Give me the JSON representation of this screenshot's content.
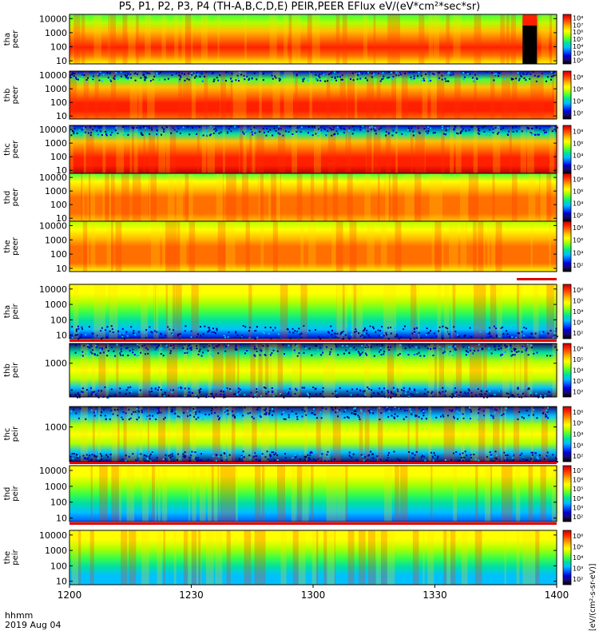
{
  "title": "P5, P1, P2, P3, P4 (TH-A,B,C,D,E) PEIR,PEER EFlux eV/(eV*cm²*sec*sr)",
  "x_axis": {
    "corner_label_1": "hhmm",
    "corner_label_2": "2019 Aug 04",
    "tick_labels": [
      "1200",
      "1230",
      "1300",
      "1330",
      "1400"
    ]
  },
  "colorbar_unit_label": "[eV/(cm²-s-sr-eV)]",
  "colors": {
    "colormap": [
      "#000000",
      "#1a0a6a",
      "#0000e0",
      "#0060ff",
      "#00c0ff",
      "#00e0a0",
      "#40ff40",
      "#b0ff00",
      "#ffff00",
      "#ffc000",
      "#ff7000",
      "#ff2000",
      "#c00000"
    ],
    "reference_line": "#e00000",
    "frame": "#000000"
  },
  "chart_data": [
    {
      "type": "heatmap",
      "probe": "tha",
      "instrument": "peer",
      "ylabel_1": "tha",
      "ylabel_2": "peer",
      "y_scale": "log",
      "y_ticks": [
        "10",
        "100",
        "1000",
        "10000"
      ],
      "x_range": [
        "1200",
        "1400"
      ],
      "colorbar_ticks": [
        "10²",
        "10³",
        "10⁴",
        "10⁵",
        "10⁶",
        "10⁷",
        "10⁸"
      ],
      "flux_profile_log10": [
        6.2,
        7.0,
        7.3,
        6.9,
        6.3,
        5.6,
        4.8
      ],
      "feature": "data gap (black) near 1350"
    },
    {
      "type": "heatmap",
      "probe": "thb",
      "instrument": "peer",
      "ylabel_1": "thb",
      "ylabel_2": "peer",
      "y_scale": "log",
      "y_ticks": [
        "10",
        "100",
        "1000",
        "10000"
      ],
      "x_range": [
        "1200",
        "1400"
      ],
      "colorbar_ticks": [
        "10²",
        "10⁴",
        "10⁶",
        "10⁸"
      ],
      "flux_profile_log10": [
        7.0,
        7.5,
        7.6,
        7.2,
        6.4,
        5.0,
        3.2
      ],
      "feature": "noisy low-flux band at high energy"
    },
    {
      "type": "heatmap",
      "probe": "thc",
      "instrument": "peer",
      "ylabel_1": "thc",
      "ylabel_2": "peer",
      "y_scale": "log",
      "y_ticks": [
        "10",
        "100",
        "1000",
        "10000"
      ],
      "x_range": [
        "1200",
        "1400"
      ],
      "colorbar_ticks": [
        "10²",
        "10⁴",
        "10⁶",
        "10⁸"
      ],
      "flux_profile_log10": [
        7.8,
        7.6,
        7.3,
        7.0,
        6.3,
        4.6,
        3.0
      ],
      "feature": "noisy low-flux band at high energy"
    },
    {
      "type": "heatmap",
      "probe": "thd",
      "instrument": "peer",
      "ylabel_1": "thd",
      "ylabel_2": "peer",
      "y_scale": "log",
      "y_ticks": [
        "10",
        "100",
        "1000",
        "10000"
      ],
      "x_range": [
        "1200",
        "1400"
      ],
      "colorbar_ticks": [
        "10²",
        "10⁴",
        "10⁶",
        "10⁸"
      ],
      "flux_profile_log10": [
        6.4,
        6.9,
        7.1,
        7.0,
        6.6,
        6.0,
        5.2
      ],
      "feature": ""
    },
    {
      "type": "heatmap",
      "probe": "the",
      "instrument": "peer",
      "ylabel_1": "the",
      "ylabel_2": "peer",
      "y_scale": "log",
      "y_ticks": [
        "10",
        "100",
        "1000",
        "10000"
      ],
      "x_range": [
        "1200",
        "1400"
      ],
      "colorbar_ticks": [
        "10²",
        "10⁴",
        "10⁶",
        "10⁸"
      ],
      "flux_profile_log10": [
        6.2,
        6.8,
        7.0,
        6.9,
        6.5,
        5.9,
        5.4
      ],
      "feature": "red line segment below panel near 1350"
    },
    {
      "type": "heatmap",
      "probe": "tha",
      "instrument": "peir",
      "ylabel_1": "tha",
      "ylabel_2": "peir",
      "y_scale": "log",
      "y_ticks": [
        "10",
        "100",
        "1000",
        "10000"
      ],
      "x_range": [
        "1200",
        "1400"
      ],
      "colorbar_ticks": [
        "10²",
        "10³",
        "10⁴",
        "10⁵",
        "10⁶"
      ],
      "flux_profile_log10": [
        3.2,
        4.0,
        4.6,
        5.1,
        5.5,
        5.8,
        5.9
      ],
      "feature": "speckled low-energy background"
    },
    {
      "type": "heatmap",
      "probe": "thb",
      "instrument": "peir",
      "ylabel_1": "thb",
      "ylabel_2": "peir",
      "y_scale": "log",
      "y_ticks": [
        "1000"
      ],
      "x_range": [
        "1200",
        "1400"
      ],
      "colorbar_ticks": [
        "10²",
        "10³",
        "10⁴",
        "10⁵",
        "10⁶"
      ],
      "flux_profile_log10": [
        2.6,
        4.2,
        5.6,
        5.9,
        5.6,
        4.3,
        2.6
      ],
      "feature": "noisy bands at top and bottom"
    },
    {
      "type": "heatmap",
      "probe": "thc",
      "instrument": "peir",
      "ylabel_1": "thc",
      "ylabel_2": "peir",
      "y_scale": "log",
      "y_ticks": [
        "1000"
      ],
      "x_range": [
        "1200",
        "1400"
      ],
      "colorbar_ticks": [
        "10²",
        "10³",
        "10⁴",
        "10⁵",
        "10⁶"
      ],
      "flux_profile_log10": [
        2.6,
        4.0,
        5.5,
        5.9,
        5.4,
        4.1,
        2.6
      ],
      "feature": "noisy bands at top and bottom"
    },
    {
      "type": "heatmap",
      "probe": "thd",
      "instrument": "peir",
      "ylabel_1": "thd",
      "ylabel_2": "peir",
      "y_scale": "log",
      "y_ticks": [
        "10",
        "100",
        "1000",
        "10000"
      ],
      "x_range": [
        "1200",
        "1400"
      ],
      "colorbar_ticks": [
        "10²",
        "10³",
        "10⁴",
        "10⁵",
        "10⁶",
        "10⁷"
      ],
      "flux_profile_log10": [
        3.6,
        4.1,
        4.5,
        5.0,
        5.6,
        6.0,
        6.1
      ],
      "feature": ""
    },
    {
      "type": "heatmap",
      "probe": "the",
      "instrument": "peir",
      "ylabel_1": "the",
      "ylabel_2": "peir",
      "y_scale": "log",
      "y_ticks": [
        "10",
        "100",
        "1000",
        "10000"
      ],
      "x_range": [
        "1200",
        "1400"
      ],
      "colorbar_ticks": [
        "10²",
        "10³",
        "10⁴",
        "10⁵",
        "10⁶"
      ],
      "flux_profile_log10": [
        3.8,
        4.2,
        4.6,
        5.0,
        5.6,
        6.0,
        6.0
      ],
      "feature": ""
    }
  ]
}
